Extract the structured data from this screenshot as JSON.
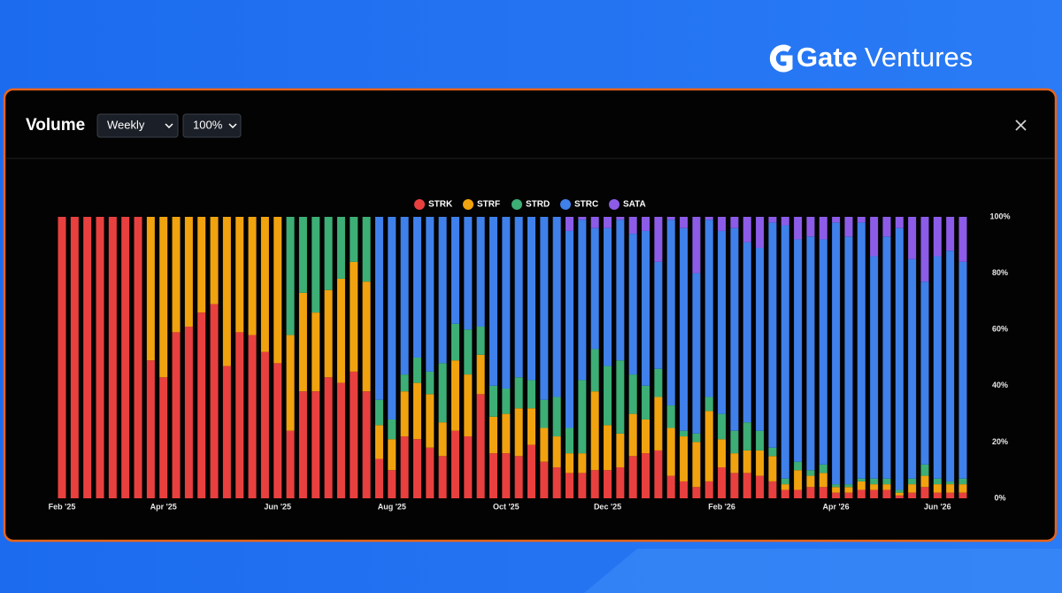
{
  "brand": {
    "name": "Gate",
    "suffix": "Ventures"
  },
  "toolbar": {
    "title": "Volume",
    "interval": "Weekly",
    "scale": "100%"
  },
  "chart_data": {
    "type": "stacked-bar",
    "categories": [
      "Feb '25",
      null,
      null,
      null,
      null,
      null,
      null,
      null,
      "Apr '25",
      null,
      null,
      null,
      null,
      null,
      null,
      null,
      null,
      "Jun '25",
      null,
      null,
      null,
      null,
      null,
      null,
      null,
      null,
      "Aug '25",
      null,
      null,
      null,
      null,
      null,
      null,
      null,
      null,
      "Oct '25",
      null,
      null,
      null,
      null,
      null,
      null,
      null,
      "Dec '25",
      null,
      null,
      null,
      null,
      null,
      null,
      null,
      null,
      "Feb '26",
      null,
      null,
      null,
      null,
      null,
      null,
      null,
      null,
      "Apr '26",
      null,
      null,
      null,
      null,
      null,
      null,
      null,
      "Jun '26",
      null,
      null
    ],
    "series": [
      {
        "name": "STRK",
        "color": "#e8403f",
        "values": [
          100,
          100,
          100,
          100,
          100,
          100,
          100,
          49,
          43,
          59,
          61,
          66,
          69,
          47,
          59,
          58,
          52,
          48,
          24,
          38,
          38,
          43,
          41,
          45,
          38,
          14,
          10,
          22,
          21,
          18,
          15,
          24,
          22,
          37,
          16,
          16,
          15,
          19,
          13,
          11,
          9,
          9,
          10,
          10,
          11,
          15,
          16,
          17,
          8,
          6,
          4,
          6,
          11,
          9,
          9,
          8,
          6,
          3,
          3,
          4,
          4,
          2,
          2,
          3,
          3,
          3,
          1,
          2,
          4,
          2,
          2,
          2
        ]
      },
      {
        "name": "STRF",
        "color": "#f0a20f",
        "values": [
          0,
          0,
          0,
          0,
          0,
          0,
          0,
          51,
          57,
          41,
          39,
          34,
          31,
          53,
          41,
          42,
          48,
          52,
          34,
          35,
          28,
          31,
          37,
          39,
          39,
          12,
          11,
          16,
          20,
          19,
          12,
          25,
          22,
          14,
          13,
          14,
          17,
          13,
          12,
          11,
          7,
          7,
          28,
          16,
          12,
          15,
          12,
          19,
          17,
          16,
          16,
          25,
          10,
          7,
          8,
          9,
          9,
          2,
          7,
          4,
          5,
          2,
          2,
          3,
          2,
          2,
          1,
          3,
          4,
          3,
          3,
          3
        ]
      },
      {
        "name": "STRD",
        "color": "#3dae75",
        "values": [
          0,
          0,
          0,
          0,
          0,
          0,
          0,
          0,
          0,
          0,
          0,
          0,
          0,
          0,
          0,
          0,
          0,
          0,
          42,
          27,
          34,
          26,
          22,
          16,
          23,
          9,
          7,
          6,
          9,
          8,
          21,
          13,
          16,
          10,
          11,
          9,
          11,
          10,
          10,
          14,
          9,
          26,
          15,
          21,
          26,
          14,
          12,
          10,
          8,
          2,
          3,
          5,
          9,
          8,
          10,
          7,
          3,
          2,
          3,
          2,
          3,
          1,
          1,
          1,
          2,
          2,
          1,
          2,
          4,
          2,
          1,
          2
        ]
      },
      {
        "name": "STRC",
        "color": "#3f80ea",
        "values": [
          0,
          0,
          0,
          0,
          0,
          0,
          0,
          0,
          0,
          0,
          0,
          0,
          0,
          0,
          0,
          0,
          0,
          0,
          0,
          0,
          0,
          0,
          0,
          0,
          0,
          65,
          72,
          56,
          50,
          55,
          52,
          38,
          40,
          39,
          60,
          61,
          57,
          58,
          65,
          64,
          70,
          57,
          43,
          49,
          50,
          50,
          55,
          38,
          66,
          72,
          57,
          63,
          65,
          72,
          64,
          65,
          80,
          90,
          79,
          83,
          80,
          93,
          88,
          91,
          79,
          86,
          93,
          78,
          65,
          79,
          82,
          77
        ]
      },
      {
        "name": "SATA",
        "color": "#8c5ce8",
        "values": [
          0,
          0,
          0,
          0,
          0,
          0,
          0,
          0,
          0,
          0,
          0,
          0,
          0,
          0,
          0,
          0,
          0,
          0,
          0,
          0,
          0,
          0,
          0,
          0,
          0,
          0,
          0,
          0,
          0,
          0,
          0,
          0,
          0,
          0,
          0,
          0,
          0,
          0,
          0,
          0,
          5,
          1,
          4,
          4,
          1,
          6,
          5,
          16,
          1,
          4,
          20,
          1,
          5,
          4,
          9,
          11,
          2,
          3,
          8,
          7,
          8,
          2,
          7,
          2,
          14,
          7,
          4,
          15,
          23,
          14,
          12,
          16
        ]
      }
    ],
    "ylim": [
      0,
      100
    ],
    "yticks": [
      {
        "value": 0,
        "label": "0%"
      },
      {
        "value": 20,
        "label": "20%"
      },
      {
        "value": 40,
        "label": "40%"
      },
      {
        "value": 60,
        "label": "60%"
      },
      {
        "value": 80,
        "label": "80%"
      },
      {
        "value": 100,
        "label": "100%"
      }
    ],
    "grid": false,
    "legend": "top"
  }
}
